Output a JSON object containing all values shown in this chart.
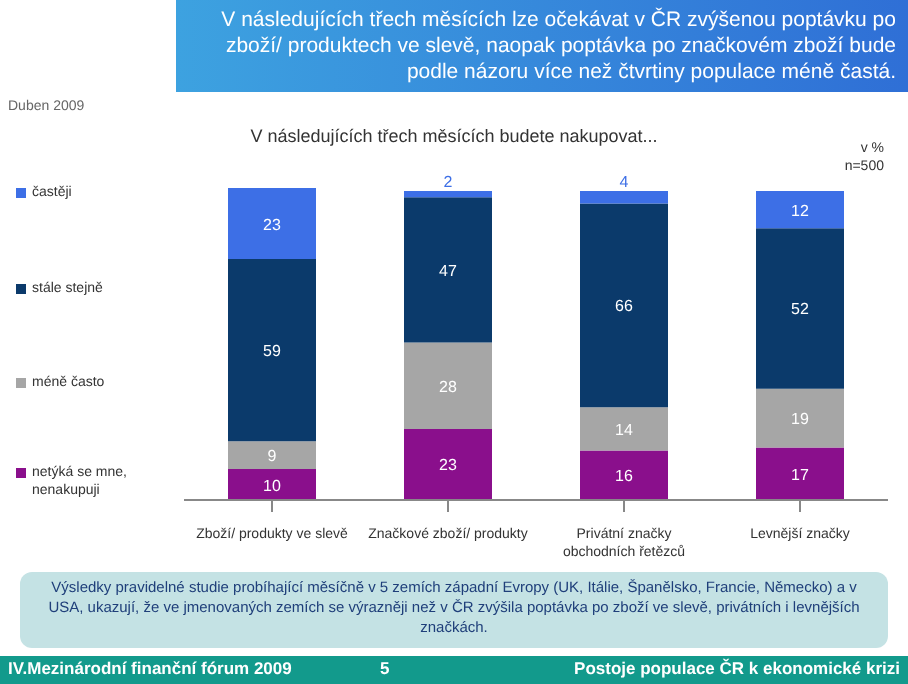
{
  "chart_data": {
    "type": "bar",
    "stacked": true,
    "data_labels": true,
    "legend": "left",
    "title": "V následujících třech měsících lze očekávat v ČR zvýšenou poptávku po zboží/ produktech ve slevě, naopak poptávka po značkovém zboží bude podle názoru více než čtvrtiny populace méně častá.",
    "subtitle": "V následujících třech měsících budete nakupovat...",
    "categories": [
      "Zboží/ produkty ve slevě",
      "Značkové zboží/ produkty",
      "Privátní značky obchodních řetězců",
      "Levnější značky"
    ],
    "series": [
      {
        "name": "netýká se mne, nenakupuji",
        "color": "#8a0f8c",
        "values": [
          10,
          23,
          16,
          17
        ]
      },
      {
        "name": "méně často",
        "color": "#a6a6a6",
        "values": [
          9,
          28,
          14,
          19
        ]
      },
      {
        "name": "stále stejně",
        "color": "#0b3a6b",
        "values": [
          59,
          47,
          66,
          52
        ]
      },
      {
        "name": "častěji",
        "color": "#3d6fe6",
        "values": [
          23,
          2,
          4,
          12
        ]
      }
    ],
    "annotations": [
      "Duben 2009",
      "v %",
      "n=500",
      "Výsledky pravidelné studie probíhající měsíčně v 5 zemích západní Evropy (UK, Itálie, Španělsko, Francie, Německo) a v USA, ukazují, že ve jmenovaných zemích se výrazněji než v ČR zvýšila poptávka po zboží ve slevě, privátních i levnějších značkách.",
      "IV.Mezinárodní finanční fórum 2009",
      "5",
      "Postoje populace ČR k ekonomické krizi"
    ]
  }
}
